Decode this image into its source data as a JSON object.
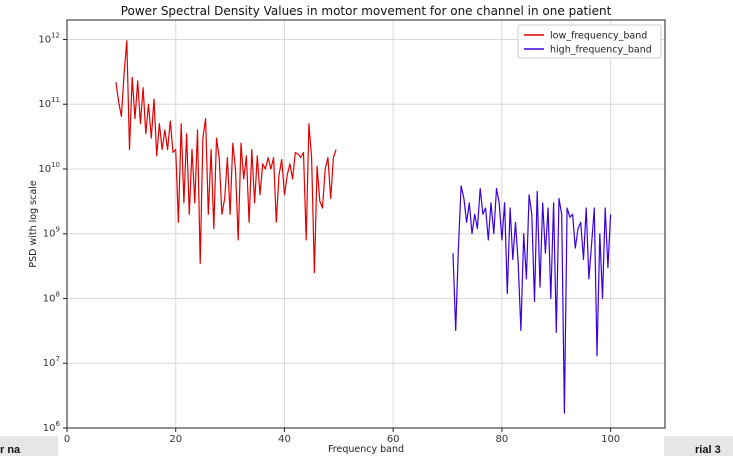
{
  "background_fragments": {
    "left_text": "r na",
    "right_text": "rial 3"
  },
  "chart_data": {
    "type": "line",
    "title": "Power Spectral Density Values in motor movement for one channel in one patient",
    "xlabel": "Frequency band",
    "ylabel": "PSD with log scale",
    "xlim": [
      0,
      110
    ],
    "ylim": [
      1000000,
      2000000000000
    ],
    "y_scale": "log",
    "x_ticks": [
      0,
      20,
      40,
      60,
      80,
      100
    ],
    "x_tick_labels": [
      "0",
      "20",
      "40",
      "60",
      "80",
      "100"
    ],
    "y_ticks": [
      1000000,
      10000000,
      100000000,
      1000000000,
      10000000000,
      100000000000,
      1000000000000
    ],
    "y_tick_labels": [
      {
        "base": "10",
        "exp": "6"
      },
      {
        "base": "10",
        "exp": "7"
      },
      {
        "base": "10",
        "exp": "8"
      },
      {
        "base": "10",
        "exp": "9"
      },
      {
        "base": "10",
        "exp": "10"
      },
      {
        "base": "10",
        "exp": "11"
      },
      {
        "base": "10",
        "exp": "12"
      }
    ],
    "grid": true,
    "legend_placement": "top-right",
    "series": [
      {
        "name": "low_frequency_band",
        "color": "#e00000",
        "x": [
          9.0,
          9.5,
          10.0,
          10.5,
          11.0,
          11.5,
          12.0,
          12.5,
          13.0,
          13.5,
          14.0,
          14.5,
          15.0,
          15.5,
          16.0,
          16.5,
          17.0,
          17.5,
          18.0,
          18.5,
          19.0,
          19.5,
          20.0,
          20.5,
          21.0,
          21.5,
          22.0,
          22.5,
          23.0,
          23.5,
          24.0,
          24.5,
          25.0,
          25.5,
          26.0,
          26.5,
          27.0,
          27.5,
          28.0,
          28.5,
          29.0,
          29.5,
          30.0,
          30.5,
          31.0,
          31.5,
          32.0,
          32.5,
          33.0,
          33.5,
          34.0,
          34.5,
          35.0,
          35.5,
          36.0,
          36.5,
          37.0,
          37.5,
          38.0,
          38.5,
          39.0,
          39.5,
          40.0,
          40.5,
          41.0,
          41.5,
          42.0,
          42.5,
          43.0,
          43.5,
          44.0,
          44.5,
          45.0,
          45.5,
          46.0,
          46.5,
          47.0,
          47.5,
          48.0,
          48.5,
          49.0,
          49.5
        ],
        "y": [
          220000000000.0,
          110000000000.0,
          65000000000.0,
          300000000000.0,
          950000000000.0,
          20000000000.0,
          260000000000.0,
          60000000000.0,
          230000000000.0,
          50000000000.0,
          180000000000.0,
          35000000000.0,
          100000000000.0,
          30000000000.0,
          120000000000.0,
          16000000000.0,
          50000000000.0,
          20000000000.0,
          40000000000.0,
          20000000000.0,
          55000000000.0,
          18000000000.0,
          20000000000.0,
          1500000000.0,
          50000000000.0,
          3000000000.0,
          35000000000.0,
          2000000000.0,
          20000000000.0,
          3000000000.0,
          40000000000.0,
          350000000.0,
          30000000000.0,
          60000000000.0,
          2000000000.0,
          20000000000.0,
          1200000000.0,
          30000000000.0,
          15000000000.0,
          2000000000.0,
          3500000000.0,
          15000000000.0,
          2000000000.0,
          25000000000.0,
          10000000000.0,
          800000000.0,
          25000000000.0,
          7000000000.0,
          16000000000.0,
          1500000000.0,
          20000000000.0,
          3000000000.0,
          16000000000.0,
          4000000000.0,
          12000000000.0,
          10000000000.0,
          15000000000.0,
          10000000000.0,
          15000000000.0,
          1500000000.0,
          8000000000.0,
          14000000000.0,
          4000000000.0,
          8000000000.0,
          12000000000.0,
          7000000000.0,
          18000000000.0,
          17000000000.0,
          15000000000.0,
          18000000000.0,
          800000000.0,
          50000000000.0,
          15000000000.0,
          250000000.0,
          11000000000.0,
          3200000000.0,
          2500000000.0,
          10000000000.0,
          15000000000.0,
          3500000000.0,
          15000000000.0,
          20000000000.0
        ]
      },
      {
        "name": "high_frequency_band",
        "color": "#3a00dd",
        "x": [
          71.0,
          71.5,
          72.0,
          72.5,
          73.0,
          73.5,
          74.0,
          74.5,
          75.0,
          75.5,
          76.0,
          76.5,
          77.0,
          77.5,
          78.0,
          78.5,
          79.0,
          79.5,
          80.0,
          80.5,
          81.0,
          81.5,
          82.0,
          82.5,
          83.0,
          83.5,
          84.0,
          84.5,
          85.0,
          85.5,
          86.0,
          86.5,
          87.0,
          87.5,
          88.0,
          88.5,
          89.0,
          89.5,
          90.0,
          90.5,
          91.0,
          91.5,
          92.0,
          92.5,
          93.0,
          93.5,
          94.0,
          94.5,
          95.0,
          95.5,
          96.0,
          96.5,
          97.0,
          97.5,
          98.0,
          98.5,
          99.0,
          99.5,
          100.0
        ],
        "y": [
          500000000.0,
          32000000.0,
          600000000.0,
          5500000000.0,
          3500000000.0,
          1500000000.0,
          3000000000.0,
          1000000000.0,
          2000000000.0,
          1200000000.0,
          5000000000.0,
          2000000000.0,
          2500000000.0,
          800000000.0,
          3000000000.0,
          1000000000.0,
          5000000000.0,
          3000000000.0,
          800000000.0,
          3000000000.0,
          120000000.0,
          2500000000.0,
          400000000.0,
          1500000000.0,
          350000000.0,
          32000000.0,
          1000000000.0,
          200000000.0,
          4000000000.0,
          2000000000.0,
          90000000.0,
          4500000000.0,
          150000000.0,
          3000000000.0,
          500000000.0,
          2500000000.0,
          100000000.0,
          3000000000.0,
          30000000.0,
          3500000000.0,
          2000000000.0,
          1700000.0,
          2500000000.0,
          1800000000.0,
          2000000000.0,
          600000000.0,
          1200000000.0,
          1500000000.0,
          400000000.0,
          2500000000.0,
          200000000.0,
          700000000.0,
          2500000000.0,
          13000000.0,
          1000000000.0,
          100000000.0,
          2500000000.0,
          300000000.0,
          2000000000.0
        ]
      }
    ]
  }
}
